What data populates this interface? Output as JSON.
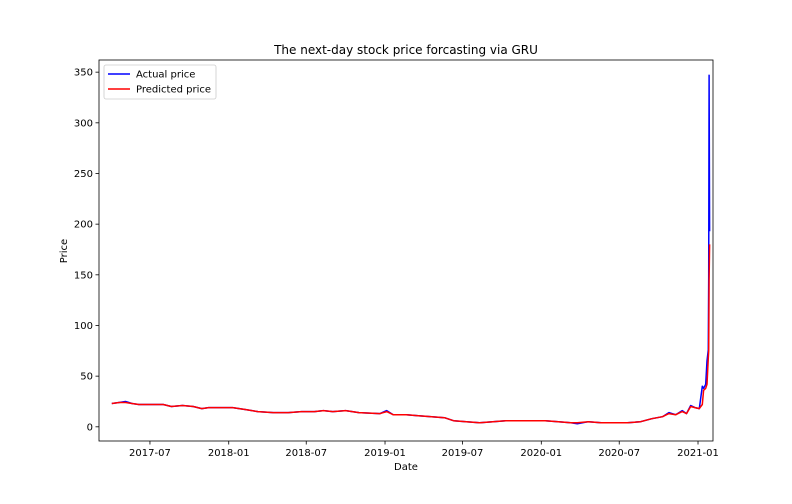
{
  "chart_data": {
    "type": "line",
    "title": "The next-day stock price forcasting via GRU",
    "xlabel": "Date",
    "ylabel": "Price",
    "xlim": [
      "2017-03-04",
      "2021-02-05"
    ],
    "ylim": [
      -14,
      362
    ],
    "yticks": [
      0,
      50,
      100,
      150,
      200,
      250,
      300,
      350
    ],
    "xticks": [
      "2017-07",
      "2018-01",
      "2018-07",
      "2019-01",
      "2019-07",
      "2020-01",
      "2020-07",
      "2021-01"
    ],
    "grid": false,
    "legend_position": "top-left",
    "series": [
      {
        "name": "Actual price",
        "color": "#0000ff",
        "points": [
          [
            "2017-04-03",
            23
          ],
          [
            "2017-04-20",
            24
          ],
          [
            "2017-05-05",
            25
          ],
          [
            "2017-05-20",
            23
          ],
          [
            "2017-06-05",
            22
          ],
          [
            "2017-07-01",
            22
          ],
          [
            "2017-08-01",
            22
          ],
          [
            "2017-08-20",
            20
          ],
          [
            "2017-09-15",
            21
          ],
          [
            "2017-10-10",
            20
          ],
          [
            "2017-10-30",
            18
          ],
          [
            "2017-11-15",
            19
          ],
          [
            "2017-12-15",
            19
          ],
          [
            "2018-01-10",
            19
          ],
          [
            "2018-02-10",
            17
          ],
          [
            "2018-03-10",
            15
          ],
          [
            "2018-04-15",
            14
          ],
          [
            "2018-05-20",
            14
          ],
          [
            "2018-06-20",
            15
          ],
          [
            "2018-07-20",
            15
          ],
          [
            "2018-08-10",
            16
          ],
          [
            "2018-09-01",
            15
          ],
          [
            "2018-10-01",
            16
          ],
          [
            "2018-11-01",
            14
          ],
          [
            "2018-12-20",
            13
          ],
          [
            "2019-01-05",
            16
          ],
          [
            "2019-01-20",
            12
          ],
          [
            "2019-02-20",
            12
          ],
          [
            "2019-03-20",
            11
          ],
          [
            "2019-04-20",
            10
          ],
          [
            "2019-05-20",
            9
          ],
          [
            "2019-06-10",
            6
          ],
          [
            "2019-07-10",
            5
          ],
          [
            "2019-08-10",
            4
          ],
          [
            "2019-09-10",
            5
          ],
          [
            "2019-10-10",
            6
          ],
          [
            "2019-11-10",
            6
          ],
          [
            "2019-12-10",
            6
          ],
          [
            "2020-01-10",
            6
          ],
          [
            "2020-02-10",
            5
          ],
          [
            "2020-03-10",
            4
          ],
          [
            "2020-03-25",
            3
          ],
          [
            "2020-04-20",
            5
          ],
          [
            "2020-05-20",
            4
          ],
          [
            "2020-06-20",
            4
          ],
          [
            "2020-07-20",
            4
          ],
          [
            "2020-08-20",
            5
          ],
          [
            "2020-09-15",
            8
          ],
          [
            "2020-10-10",
            10
          ],
          [
            "2020-10-25",
            14
          ],
          [
            "2020-11-10",
            12
          ],
          [
            "2020-11-25",
            16
          ],
          [
            "2020-12-05",
            13
          ],
          [
            "2020-12-15",
            21
          ],
          [
            "2020-12-25",
            19
          ],
          [
            "2021-01-04",
            18
          ],
          [
            "2021-01-11",
            40
          ],
          [
            "2021-01-14",
            38
          ],
          [
            "2021-01-19",
            42
          ],
          [
            "2021-01-22",
            65
          ],
          [
            "2021-01-25",
            76
          ],
          [
            "2021-01-26",
            148
          ],
          [
            "2021-01-27",
            347
          ],
          [
            "2021-01-28",
            193
          ]
        ]
      },
      {
        "name": "Predicted price",
        "color": "#ff0000",
        "points": [
          [
            "2017-04-03",
            23
          ],
          [
            "2017-04-20",
            24
          ],
          [
            "2017-05-05",
            24
          ],
          [
            "2017-05-20",
            23
          ],
          [
            "2017-06-05",
            22
          ],
          [
            "2017-07-01",
            22
          ],
          [
            "2017-08-01",
            22
          ],
          [
            "2017-08-20",
            20
          ],
          [
            "2017-09-15",
            21
          ],
          [
            "2017-10-10",
            20
          ],
          [
            "2017-10-30",
            18
          ],
          [
            "2017-11-15",
            19
          ],
          [
            "2017-12-15",
            19
          ],
          [
            "2018-01-10",
            19
          ],
          [
            "2018-02-10",
            17
          ],
          [
            "2018-03-10",
            15
          ],
          [
            "2018-04-15",
            14
          ],
          [
            "2018-05-20",
            14
          ],
          [
            "2018-06-20",
            15
          ],
          [
            "2018-07-20",
            15
          ],
          [
            "2018-08-10",
            16
          ],
          [
            "2018-09-01",
            15
          ],
          [
            "2018-10-01",
            16
          ],
          [
            "2018-11-01",
            14
          ],
          [
            "2018-12-20",
            13
          ],
          [
            "2019-01-05",
            15
          ],
          [
            "2019-01-20",
            12
          ],
          [
            "2019-02-20",
            12
          ],
          [
            "2019-03-20",
            11
          ],
          [
            "2019-04-20",
            10
          ],
          [
            "2019-05-20",
            9
          ],
          [
            "2019-06-10",
            6
          ],
          [
            "2019-07-10",
            5
          ],
          [
            "2019-08-10",
            4
          ],
          [
            "2019-09-10",
            5
          ],
          [
            "2019-10-10",
            6
          ],
          [
            "2019-11-10",
            6
          ],
          [
            "2019-12-10",
            6
          ],
          [
            "2020-01-10",
            6
          ],
          [
            "2020-02-10",
            5
          ],
          [
            "2020-03-10",
            4
          ],
          [
            "2020-03-25",
            4
          ],
          [
            "2020-04-20",
            5
          ],
          [
            "2020-05-20",
            4
          ],
          [
            "2020-06-20",
            4
          ],
          [
            "2020-07-20",
            4
          ],
          [
            "2020-08-20",
            5
          ],
          [
            "2020-09-15",
            8
          ],
          [
            "2020-10-10",
            10
          ],
          [
            "2020-10-25",
            13
          ],
          [
            "2020-11-10",
            12
          ],
          [
            "2020-11-25",
            15
          ],
          [
            "2020-12-05",
            13
          ],
          [
            "2020-12-15",
            20
          ],
          [
            "2020-12-25",
            19
          ],
          [
            "2021-01-04",
            18
          ],
          [
            "2021-01-11",
            22
          ],
          [
            "2021-01-14",
            36
          ],
          [
            "2021-01-19",
            38
          ],
          [
            "2021-01-22",
            42
          ],
          [
            "2021-01-25",
            68
          ],
          [
            "2021-01-26",
            75
          ],
          [
            "2021-01-27",
            145
          ],
          [
            "2021-01-28",
            180
          ]
        ]
      }
    ]
  }
}
